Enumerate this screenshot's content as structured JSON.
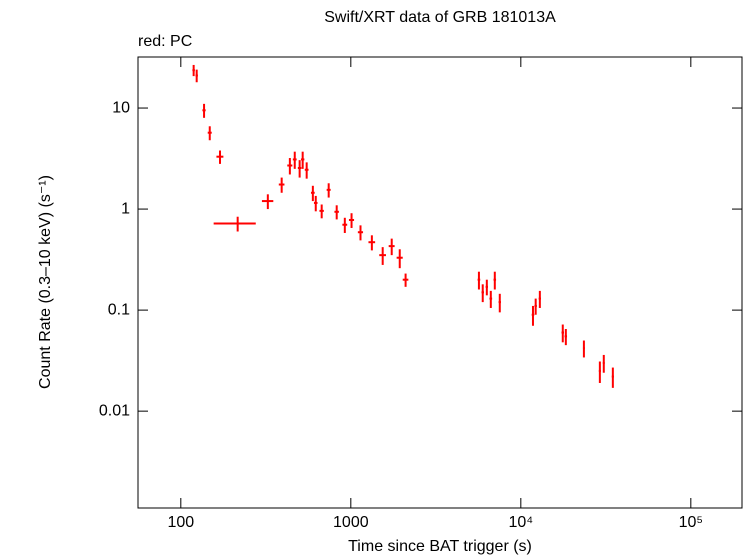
{
  "chart_data": {
    "type": "scatter",
    "title": "Swift/XRT data of GRB 181013A",
    "subtitle": "red: PC",
    "x_label": "Time since BAT trigger (s)",
    "y_label": "Count Rate (0.3–10 keV) (s⁻¹)",
    "x_log": true,
    "y_log": true,
    "xlim": [
      56,
      200000
    ],
    "ylim": [
      0.0011,
      32
    ],
    "xticks": [
      100,
      1000,
      {
        "value": 10000,
        "label": "10⁴"
      },
      {
        "value": 100000,
        "label": "10⁵"
      }
    ],
    "yticks": [
      0.01,
      0.1,
      1,
      10
    ],
    "series": [
      {
        "name": "PC",
        "color": "#ff0000",
        "x": [
          119,
          124,
          137,
          148,
          170,
          216,
          325,
          392,
          438,
          468,
          500,
          521,
          550,
          598,
          622,
          674,
          741,
          826,
          922,
          1010,
          1140,
          1330,
          1540,
          1740,
          1940,
          2100,
          5670,
          5970,
          6310,
          6660,
          7030,
          7520,
          11790,
          12230,
          12940,
          17650,
          18400,
          23500,
          29170,
          30760,
          34780
        ],
        "values": [
          23.7,
          21,
          9.5,
          5.7,
          3.3,
          0.72,
          1.2,
          1.75,
          2.7,
          3.1,
          2.55,
          3.1,
          2.45,
          1.45,
          1.15,
          0.96,
          1.55,
          0.94,
          0.7,
          0.78,
          0.59,
          0.47,
          0.35,
          0.43,
          0.33,
          0.2,
          0.2,
          0.15,
          0.17,
          0.13,
          0.2,
          0.12,
          0.09,
          0.11,
          0.13,
          0.06,
          0.055,
          0.042,
          0.025,
          0.03,
          0.022
        ],
        "x_err": [
          2,
          2,
          3,
          4,
          8,
          60,
          25,
          15,
          15,
          12,
          12,
          12,
          14,
          15,
          15,
          20,
          20,
          25,
          30,
          35,
          40,
          60,
          70,
          70,
          80,
          80,
          100,
          100,
          100,
          120,
          120,
          120,
          200,
          200,
          200,
          300,
          300,
          300,
          400,
          400,
          500
        ],
        "y_err": [
          3,
          3,
          1.5,
          0.9,
          0.5,
          0.12,
          0.2,
          0.3,
          0.5,
          0.6,
          0.5,
          0.6,
          0.45,
          0.25,
          0.2,
          0.15,
          0.25,
          0.15,
          0.12,
          0.13,
          0.1,
          0.08,
          0.07,
          0.08,
          0.07,
          0.03,
          0.04,
          0.03,
          0.03,
          0.025,
          0.04,
          0.025,
          0.02,
          0.02,
          0.025,
          0.012,
          0.01,
          0.008,
          0.006,
          0.006,
          0.005
        ]
      }
    ]
  }
}
